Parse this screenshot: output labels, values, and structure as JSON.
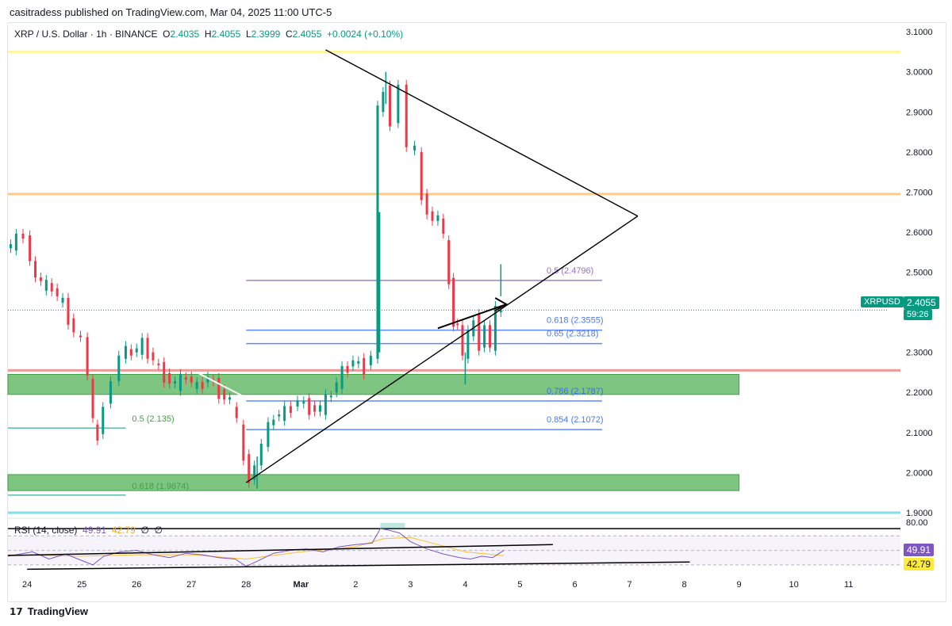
{
  "publisher_line": "casitradess published on TradingView.com, Mar 04, 2025 11:00 UTC-5",
  "footer_brand": "TradingView",
  "legend": {
    "symbol": "XRP / U.S. Dollar · 1h · BINANCE",
    "open_label": "O",
    "open": "2.4035",
    "high_label": "H",
    "high": "2.4055",
    "low_label": "L",
    "low": "2.3999",
    "close_label": "C",
    "close": "2.4055",
    "change": "+0.0024 (+0.10%)"
  },
  "rsi_legend": {
    "label": "RSI (14, close)",
    "rsi": "49.91",
    "ma": "42.79",
    "extra1": "∅",
    "extra2": "∅"
  },
  "price_badge": {
    "symbol": "XRPUSD",
    "price": "2.4055",
    "countdown": "59:26",
    "color": "#089981"
  },
  "rsi_badges": {
    "rsi": "49.91",
    "ma": "42.79",
    "rsi_color": "#7e57c2",
    "ma_color": "#ffeb3b"
  },
  "colors": {
    "up": "#089981",
    "down": "#f23645",
    "yellow_line": "#fff59d",
    "orange_line": "#ffcc80",
    "red_line": "#ef9a9a",
    "cyan_line": "#80deea",
    "zone": "#66bb6a",
    "fib_blue": "#2962ff",
    "fib_purple": "#7e57c2",
    "rsi_line": "#7e57c2",
    "rsi_ma": "#fbc02d"
  },
  "chart_data": {
    "type": "candlestick",
    "symbol": "XRPUSD",
    "interval": "1h",
    "ylim": [
      1.89,
      3.12
    ],
    "y_ticks": [
      "3.1000",
      "3.0000",
      "2.9000",
      "2.8000",
      "2.7000",
      "2.6000",
      "2.5000",
      "2.4000",
      "2.3000",
      "2.2000",
      "2.1000",
      "2.0000",
      "1.9000"
    ],
    "x_ticks": [
      "24",
      "25",
      "26",
      "27",
      "28",
      "Mar",
      "2",
      "3",
      "4",
      "5",
      "6",
      "7",
      "8",
      "9",
      "10",
      "11"
    ],
    "x_tick_days": [
      0,
      1,
      2,
      3,
      4,
      5,
      6,
      7,
      8,
      9,
      10,
      11,
      12,
      13,
      14,
      15
    ],
    "xlim": [
      -0.35,
      15.7
    ],
    "price_path": [
      [
        -0.35,
        2.56
      ],
      [
        -0.15,
        2.58
      ],
      [
        0.0,
        2.6
      ],
      [
        0.1,
        2.52
      ],
      [
        0.3,
        2.47
      ],
      [
        0.5,
        2.46
      ],
      [
        0.7,
        2.42
      ],
      [
        0.9,
        2.35
      ],
      [
        1.05,
        2.33
      ],
      [
        1.15,
        2.25
      ],
      [
        1.25,
        2.12
      ],
      [
        1.32,
        2.08
      ],
      [
        1.45,
        2.18
      ],
      [
        1.6,
        2.22
      ],
      [
        1.75,
        2.3
      ],
      [
        1.95,
        2.3
      ],
      [
        2.15,
        2.32
      ],
      [
        2.35,
        2.28
      ],
      [
        2.55,
        2.24
      ],
      [
        2.75,
        2.22
      ],
      [
        2.95,
        2.24
      ],
      [
        3.15,
        2.21
      ],
      [
        3.35,
        2.24
      ],
      [
        3.55,
        2.2
      ],
      [
        3.75,
        2.18
      ],
      [
        3.9,
        2.12
      ],
      [
        4.0,
        2.03
      ],
      [
        4.1,
        1.99
      ],
      [
        4.2,
        2.01
      ],
      [
        4.35,
        2.08
      ],
      [
        4.55,
        2.14
      ],
      [
        4.75,
        2.15
      ],
      [
        5.0,
        2.18
      ],
      [
        5.2,
        2.16
      ],
      [
        5.4,
        2.16
      ],
      [
        5.6,
        2.2
      ],
      [
        5.8,
        2.25
      ],
      [
        6.0,
        2.28
      ],
      [
        6.2,
        2.26
      ],
      [
        6.35,
        2.3
      ],
      [
        6.45,
        2.9
      ],
      [
        6.55,
        2.95
      ],
      [
        6.7,
        2.88
      ],
      [
        6.85,
        2.96
      ],
      [
        7.0,
        2.82
      ],
      [
        7.15,
        2.8
      ],
      [
        7.25,
        2.68
      ],
      [
        7.35,
        2.66
      ],
      [
        7.45,
        2.62
      ],
      [
        7.55,
        2.65
      ],
      [
        7.65,
        2.58
      ],
      [
        7.75,
        2.47
      ],
      [
        7.82,
        2.38
      ],
      [
        7.9,
        2.36
      ],
      [
        8.0,
        2.3
      ],
      [
        8.1,
        2.34
      ],
      [
        8.2,
        2.38
      ],
      [
        8.3,
        2.32
      ],
      [
        8.4,
        2.36
      ],
      [
        8.5,
        2.32
      ],
      [
        8.6,
        2.4
      ],
      [
        8.7,
        2.4055
      ]
    ],
    "spike_wicks": [
      [
        6.55,
        3.0
      ],
      [
        8.65,
        2.52
      ],
      [
        8.0,
        2.22
      ],
      [
        4.2,
        1.96
      ]
    ],
    "horizontal_levels": [
      {
        "price": 3.05,
        "color_key": "yellow_line"
      },
      {
        "price": 2.695,
        "color_key": "orange_line"
      },
      {
        "price": 2.255,
        "color_key": "red_line"
      },
      {
        "price": 1.9,
        "color_key": "cyan_line"
      }
    ],
    "zones": [
      {
        "from_day": -0.35,
        "to_day": 13.0,
        "low": 2.195,
        "high": 2.245
      },
      {
        "from_day": -0.35,
        "to_day": 13.0,
        "low": 1.955,
        "high": 1.995
      }
    ],
    "fib_levels": [
      {
        "label": "0.5 (2.4796)",
        "price": 2.4796,
        "from_day": 4.0,
        "to_day": 10.5,
        "color_key": "fib_purple"
      },
      {
        "label": "0.618 (2.3555)",
        "price": 2.3555,
        "from_day": 4.0,
        "to_day": 10.5,
        "color_key": "fib_blue"
      },
      {
        "label": "0.65 (2.3218)",
        "price": 2.3218,
        "from_day": 4.0,
        "to_day": 10.5,
        "color_key": "fib_blue"
      },
      {
        "label": "0.786 (2.1787)",
        "price": 2.1787,
        "from_day": 4.0,
        "to_day": 10.5,
        "color_key": "fib_blue"
      },
      {
        "label": "0.854 (2.1072)",
        "price": 2.1072,
        "from_day": 4.0,
        "to_day": 10.5,
        "color_key": "fib_blue"
      }
    ],
    "left_fib_levels": [
      {
        "label": "0.5 (2.135)",
        "price": 2.135,
        "from_day": -0.35,
        "to_day": 1.8,
        "color_key": "up"
      },
      {
        "label": "0.618 (1.9674)",
        "price": 1.9674,
        "from_day": -0.35,
        "to_day": 1.8,
        "color_key": "up"
      }
    ],
    "trendlines": [
      {
        "x1": 5.45,
        "y1": 3.055,
        "x2": 11.15,
        "y2": 2.64
      },
      {
        "x1": 11.15,
        "y1": 2.64,
        "x2": 4.0,
        "y2": 1.975
      },
      {
        "x1": 7.5,
        "y1": 2.36,
        "x2": 8.75,
        "y2": 2.42
      }
    ],
    "rsi": {
      "ylim": [
        20,
        90
      ],
      "levels": [
        80,
        70,
        50,
        30
      ],
      "current": 49.91,
      "ma": 42.79,
      "path": [
        [
          -0.35,
          42
        ],
        [
          0.1,
          48
        ],
        [
          0.4,
          38
        ],
        [
          0.7,
          45
        ],
        [
          1.0,
          36
        ],
        [
          1.2,
          30
        ],
        [
          1.4,
          42
        ],
        [
          1.7,
          48
        ],
        [
          2.0,
          50
        ],
        [
          2.3,
          44
        ],
        [
          2.6,
          40
        ],
        [
          2.9,
          46
        ],
        [
          3.2,
          44
        ],
        [
          3.5,
          40
        ],
        [
          3.8,
          38
        ],
        [
          4.0,
          28
        ],
        [
          4.2,
          35
        ],
        [
          4.5,
          46
        ],
        [
          4.8,
          50
        ],
        [
          5.1,
          52
        ],
        [
          5.4,
          48
        ],
        [
          5.7,
          55
        ],
        [
          6.0,
          58
        ],
        [
          6.3,
          60
        ],
        [
          6.45,
          80
        ],
        [
          6.6,
          78
        ],
        [
          6.8,
          74
        ],
        [
          7.0,
          62
        ],
        [
          7.3,
          52
        ],
        [
          7.6,
          45
        ],
        [
          7.9,
          40
        ],
        [
          8.1,
          38
        ],
        [
          8.3,
          42
        ],
        [
          8.5,
          40
        ],
        [
          8.7,
          49.91
        ]
      ],
      "ma_path": [
        [
          -0.35,
          44
        ],
        [
          1.0,
          42
        ],
        [
          2.0,
          44
        ],
        [
          3.0,
          44
        ],
        [
          4.0,
          38
        ],
        [
          5.0,
          48
        ],
        [
          6.0,
          55
        ],
        [
          6.5,
          66
        ],
        [
          7.0,
          68
        ],
        [
          7.5,
          58
        ],
        [
          8.0,
          48
        ],
        [
          8.7,
          42.79
        ]
      ],
      "trendlines": [
        {
          "x1": -0.35,
          "y1": 43,
          "x2": 9.6,
          "y2": 58
        },
        {
          "x1": 0.0,
          "y1": 24,
          "x2": 12.1,
          "y2": 34
        }
      ]
    }
  }
}
